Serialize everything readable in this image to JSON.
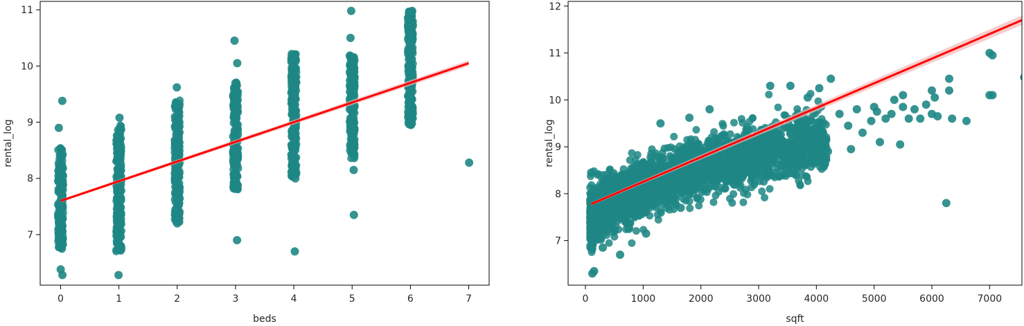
{
  "colors": {
    "points": "#1f8785",
    "points_dense": "#0f7b79",
    "fit_line": "#ff0000",
    "ci_band": "#f4b6b6"
  },
  "chart_data": [
    {
      "type": "scatter",
      "xlabel": "beds",
      "ylabel": "rental_log",
      "xlim": [
        -0.35,
        7.35
      ],
      "ylim": [
        6.1,
        11.15
      ],
      "xticks": [
        0,
        1,
        2,
        3,
        4,
        5,
        6,
        7
      ],
      "yticks": [
        7,
        8,
        9,
        10,
        11
      ],
      "regression": {
        "x": [
          0,
          7
        ],
        "y": [
          7.6,
          10.05
        ]
      },
      "columns": [
        {
          "x": 0,
          "dense": [
            6.75,
            8.55
          ],
          "outliers": [
            9.38,
            8.9,
            6.38,
            6.28,
            6.75
          ]
        },
        {
          "x": 1,
          "dense": [
            6.7,
            8.95
          ],
          "outliers": [
            9.08,
            6.28
          ]
        },
        {
          "x": 2,
          "dense": [
            7.22,
            9.4
          ],
          "outliers": [
            9.62,
            7.2
          ]
        },
        {
          "x": 3,
          "dense": [
            7.8,
            9.72
          ],
          "outliers": [
            10.45,
            10.05,
            6.9,
            7.85
          ]
        },
        {
          "x": 4,
          "dense": [
            8.02,
            10.22
          ],
          "outliers": [
            6.7,
            8.0
          ]
        },
        {
          "x": 5,
          "dense": [
            8.35,
            10.2
          ],
          "outliers": [
            10.98,
            10.5,
            7.35,
            8.15
          ]
        },
        {
          "x": 6,
          "dense": [
            8.95,
            10.98
          ],
          "outliers": [
            10.98,
            10.45,
            9.72,
            9.55,
            9.45,
            9.35,
            8.95
          ]
        },
        {
          "x": 7,
          "dense": null,
          "outliers": [
            8.28
          ]
        }
      ]
    },
    {
      "type": "scatter",
      "xlabel": "sqft",
      "ylabel": "rental_log",
      "xlim": [
        -300,
        7560
      ],
      "ylim": [
        6.05,
        12.1
      ],
      "xticks": [
        0,
        1000,
        2000,
        3000,
        4000,
        5000,
        6000,
        7000
      ],
      "yticks": [
        7,
        8,
        9,
        10,
        11,
        12
      ],
      "regression": {
        "x": [
          100,
          7600
        ],
        "y": [
          7.78,
          11.72
        ]
      },
      "outliers": [
        [
          100,
          8.45
        ],
        [
          120,
          6.3
        ],
        [
          150,
          6.35
        ],
        [
          300,
          6.85
        ],
        [
          600,
          6.7
        ],
        [
          750,
          7.25
        ],
        [
          1050,
          7.15
        ],
        [
          1300,
          7.85
        ],
        [
          1650,
          7.7
        ],
        [
          1300,
          9.5
        ],
        [
          1800,
          9.62
        ],
        [
          2150,
          9.8
        ],
        [
          3200,
          10.3
        ],
        [
          3550,
          10.3
        ],
        [
          3850,
          10.05
        ],
        [
          4050,
          10.25
        ],
        [
          4250,
          10.45
        ],
        [
          4200,
          8.9
        ],
        [
          4400,
          9.7
        ],
        [
          4550,
          9.45
        ],
        [
          4600,
          8.95
        ],
        [
          4700,
          9.8
        ],
        [
          4800,
          9.3
        ],
        [
          4950,
          9.55
        ],
        [
          5000,
          9.85
        ],
        [
          5050,
          9.75
        ],
        [
          5100,
          9.1
        ],
        [
          5200,
          9.6
        ],
        [
          5300,
          9.7
        ],
        [
          5350,
          10.0
        ],
        [
          5500,
          10.1
        ],
        [
          5500,
          9.85
        ],
        [
          5600,
          9.6
        ],
        [
          5700,
          9.8
        ],
        [
          5800,
          9.6
        ],
        [
          5900,
          9.9
        ],
        [
          6000,
          10.2
        ],
        [
          6000,
          9.7
        ],
        [
          6050,
          10.05
        ],
        [
          6100,
          9.65
        ],
        [
          6250,
          7.8
        ],
        [
          6300,
          10.2
        ],
        [
          6300,
          10.45
        ],
        [
          6600,
          9.55
        ],
        [
          7000,
          10.1
        ],
        [
          7050,
          10.1
        ],
        [
          7050,
          10.95
        ],
        [
          7000,
          11.0
        ],
        [
          7600,
          10.48
        ],
        [
          6350,
          9.6
        ],
        [
          5450,
          9.05
        ]
      ]
    }
  ]
}
